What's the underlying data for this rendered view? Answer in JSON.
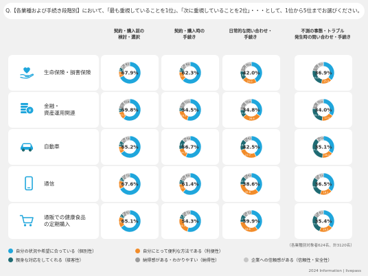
{
  "title": "Q.【各業種および手続き段階別】において、「最も重視していることを1位」、「次に重視していることを2位」・・・として、1位から5位までお選びください。",
  "columns": [
    [
      "契約・購入前の",
      "検討・選択"
    ],
    [
      "契約・購入時の",
      "手続き"
    ],
    [
      "日常的な問い合わせ・",
      "手続き"
    ],
    [
      "不測の事態・トラブル",
      "発生時の問い合わせ・手続き"
    ]
  ],
  "rows": [
    {
      "label": [
        "生命保険・損害保険"
      ],
      "icon": "heart-hand-icon"
    },
    {
      "label": [
        "金融・",
        "資産運用関連"
      ],
      "icon": "coin-stack-icon"
    },
    {
      "label": [
        "自動車"
      ],
      "icon": "car-icon"
    },
    {
      "label": [
        "通信"
      ],
      "icon": "smartphone-icon"
    },
    {
      "label": [
        "通販での健康食品",
        "の定期購入"
      ],
      "icon": "shopping-cart-icon"
    }
  ],
  "colors": {
    "individual": "#1fa6dc",
    "convenience": "#f28c2a",
    "hospitality": "#1f6b73",
    "understandable": "#9b9b9b",
    "trust": "#c6c6c6",
    "background": "#f1f1f1",
    "card": "#ffffff"
  },
  "chart_data": {
    "type": "pie",
    "variant": "donut",
    "series_names": [
      "自分の状況や希望に合っている（個別性）",
      "自分にとって便利な方法である（利便性）",
      "親身な対応をしてくれる（接客性）",
      "納得感がある・わかりやすい（納得性）",
      "企業への信頼感がある（信頼性・安全性）"
    ],
    "series_keys": [
      "individual",
      "convenience",
      "hospitality",
      "understandable",
      "trust"
    ],
    "grid": [
      [
        [
          67.9,
          9.0,
          6.4,
          8.0,
          8.7
        ],
        [
          62.3,
          13.9,
          6.9,
          8.0,
          8.9
        ],
        [
          42.0,
          22.0,
          13.8,
          11.6,
          10.6
        ],
        [
          36.9,
          15.9,
          25.9,
          11.6,
          9.7
        ]
      ],
      [
        [
          59.8,
          11.4,
          6.2,
          11.0,
          11.6
        ],
        [
          54.5,
          18.2,
          5.6,
          10.7,
          11.0
        ],
        [
          34.8,
          28.6,
          11.6,
          13.4,
          11.6
        ],
        [
          34.0,
          17.9,
          25.3,
          10.8,
          12.0
        ]
      ],
      [
        [
          65.2,
          10.4,
          8.8,
          8.0,
          7.6
        ],
        [
          56.7,
          14.9,
          15.2,
          6.6,
          6.6
        ],
        [
          42.5,
          27.7,
          16.6,
          7.0,
          6.2
        ],
        [
          35.1,
          16.2,
          37.3,
          6.0,
          5.4
        ]
      ],
      [
        [
          67.6,
          12.6,
          5.8,
          7.0,
          7.0
        ],
        [
          61.4,
          13.5,
          7.2,
          9.0,
          8.9
        ],
        [
          38.6,
          35.6,
          12.8,
          7.0,
          6.0
        ],
        [
          36.5,
          18.2,
          30.4,
          7.5,
          7.4
        ]
      ],
      [
        [
          65.1,
          16.3,
          5.2,
          6.7,
          6.7
        ],
        [
          54.3,
          24.5,
          7.2,
          7.0,
          7.0
        ],
        [
          39.9,
          33.6,
          11.9,
          7.4,
          7.2
        ],
        [
          35.4,
          20.5,
          27.7,
          8.2,
          8.2
        ]
      ]
    ]
  },
  "legend": [
    {
      "label": "自分の状況や希望に合っている（個別性）",
      "color": "#1fa6dc"
    },
    {
      "label": "自分にとって便利な方法である（利便性）",
      "color": "#f28c2a"
    },
    {
      "label": "親身な対応をしてくれる（接客性）",
      "color": "#1f6b73"
    },
    {
      "label": "納得感がある・わかりやすい（納得性）",
      "color": "#9b9b9b"
    },
    {
      "label": "企業への信頼感がある（信頼性・安全性）",
      "color": "#c6c6c6"
    }
  ],
  "note": "（各業種別対象者624名、計3120名）",
  "footer": "2024 Information | livepass"
}
